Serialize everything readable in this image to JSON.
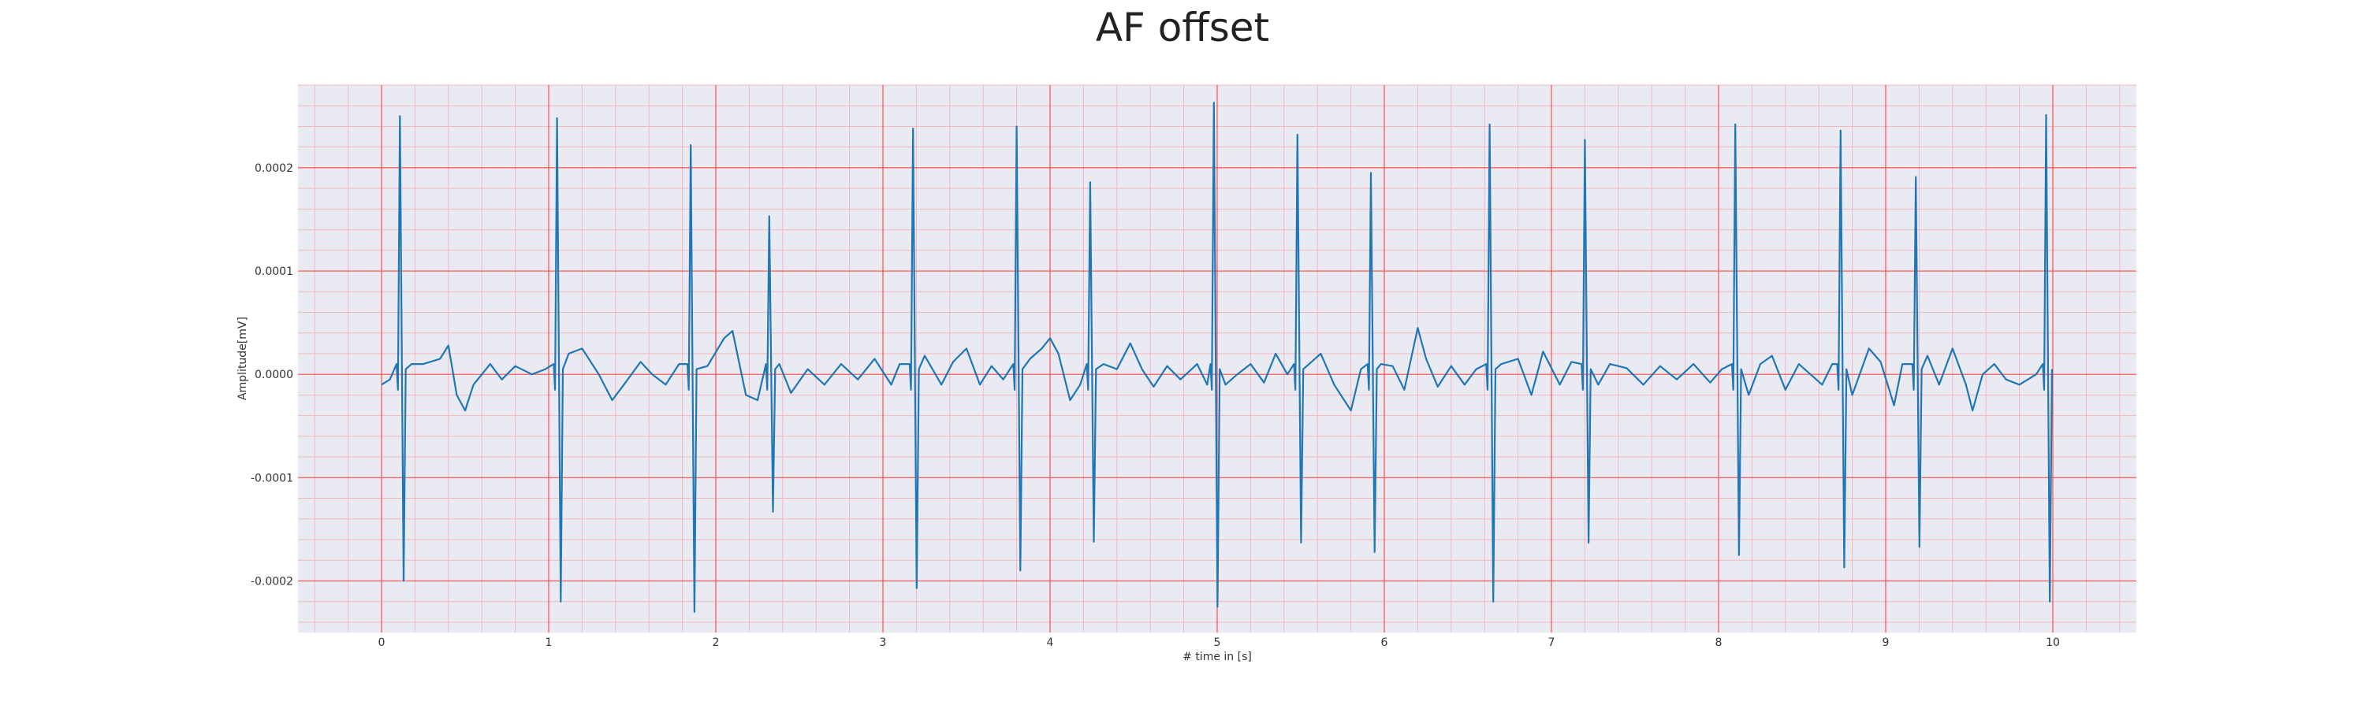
{
  "chart_data": {
    "type": "line",
    "title": "AF offset",
    "xlabel": "# time in [s]",
    "ylabel": "Amplitude[mV]",
    "xlim": [
      -0.5,
      10.5
    ],
    "ylim": [
      -0.00025,
      0.00028
    ],
    "x_ticks": [
      0,
      1,
      2,
      3,
      4,
      5,
      6,
      7,
      8,
      9,
      10
    ],
    "x_tick_labels": [
      "0",
      "1",
      "2",
      "3",
      "4",
      "5",
      "6",
      "7",
      "8",
      "9",
      "10"
    ],
    "y_ticks": [
      -0.0002,
      -0.0001,
      0,
      0.0001,
      0.0002
    ],
    "y_tick_labels": [
      "-0.0002",
      "-0.0001",
      "0.0000",
      "0.0001",
      "0.0002"
    ],
    "grid": true,
    "minor_grid": true,
    "background_color": "#eaeaf2",
    "major_grid_color": "#ff4d4d",
    "minor_grid_color": "#f2b8c0",
    "series": [
      {
        "color": "#1f77b4",
        "beats": [
          {
            "t": 0.11,
            "peak": 0.00025,
            "trough": -0.0002
          },
          {
            "t": 1.05,
            "peak": 0.000248,
            "trough": -0.00022
          },
          {
            "t": 1.85,
            "peak": 0.000222,
            "trough": -0.00023
          },
          {
            "t": 2.32,
            "peak": 0.000153,
            "trough": -0.000133
          },
          {
            "t": 3.18,
            "peak": 0.000238,
            "trough": -0.000207
          },
          {
            "t": 3.8,
            "peak": 0.00024,
            "trough": -0.00019
          },
          {
            "t": 4.24,
            "peak": 0.000186,
            "trough": -0.000162
          },
          {
            "t": 4.98,
            "peak": 0.000263,
            "trough": -0.000225
          },
          {
            "t": 5.48,
            "peak": 0.000232,
            "trough": -0.000163
          },
          {
            "t": 5.92,
            "peak": 0.000195,
            "trough": -0.000172
          },
          {
            "t": 6.63,
            "peak": 0.000242,
            "trough": -0.00022
          },
          {
            "t": 7.2,
            "peak": 0.000227,
            "trough": -0.000163
          },
          {
            "t": 8.1,
            "peak": 0.000242,
            "trough": -0.000175
          },
          {
            "t": 8.73,
            "peak": 0.000236,
            "trough": -0.000187
          },
          {
            "t": 9.18,
            "peak": 0.000191,
            "trough": -0.000167
          },
          {
            "t": 9.96,
            "peak": 0.000251,
            "trough": -0.00022
          }
        ],
        "baseline": [
          [
            0.0,
            -1e-05
          ],
          [
            0.05,
            -5e-06
          ],
          [
            0.18,
            1e-05
          ],
          [
            0.25,
            1e-05
          ],
          [
            0.35,
            1.5e-05
          ],
          [
            0.4,
            2.8e-05
          ],
          [
            0.45,
            -2e-05
          ],
          [
            0.5,
            -3.5e-05
          ],
          [
            0.55,
            -1e-05
          ],
          [
            0.65,
            1e-05
          ],
          [
            0.72,
            -5e-06
          ],
          [
            0.8,
            8e-06
          ],
          [
            0.9,
            0.0
          ],
          [
            0.98,
            5e-06
          ],
          [
            1.12,
            2e-05
          ],
          [
            1.2,
            2.5e-05
          ],
          [
            1.3,
            0.0
          ],
          [
            1.38,
            -2.5e-05
          ],
          [
            1.45,
            -1e-05
          ],
          [
            1.55,
            1.2e-05
          ],
          [
            1.62,
            0.0
          ],
          [
            1.7,
            -1e-05
          ],
          [
            1.78,
            1e-05
          ],
          [
            1.95,
            8e-06
          ],
          [
            2.05,
            3.5e-05
          ],
          [
            2.1,
            4.2e-05
          ],
          [
            2.18,
            -2e-05
          ],
          [
            2.25,
            -2.5e-05
          ],
          [
            2.38,
            1e-05
          ],
          [
            2.45,
            -1.8e-05
          ],
          [
            2.55,
            5e-06
          ],
          [
            2.65,
            -1e-05
          ],
          [
            2.75,
            1e-05
          ],
          [
            2.85,
            -5e-06
          ],
          [
            2.95,
            1.5e-05
          ],
          [
            3.05,
            -1e-05
          ],
          [
            3.1,
            1e-05
          ],
          [
            3.25,
            1.8e-05
          ],
          [
            3.35,
            -1e-05
          ],
          [
            3.42,
            1.2e-05
          ],
          [
            3.5,
            2.5e-05
          ],
          [
            3.58,
            -1e-05
          ],
          [
            3.65,
            8e-06
          ],
          [
            3.72,
            -5e-06
          ],
          [
            3.88,
            1.5e-05
          ],
          [
            3.95,
            2.5e-05
          ],
          [
            4.0,
            3.5e-05
          ],
          [
            4.05,
            2e-05
          ],
          [
            4.12,
            -2.5e-05
          ],
          [
            4.18,
            -1e-05
          ],
          [
            4.32,
            1e-05
          ],
          [
            4.4,
            5e-06
          ],
          [
            4.48,
            3e-05
          ],
          [
            4.55,
            5e-06
          ],
          [
            4.62,
            -1.2e-05
          ],
          [
            4.7,
            8e-06
          ],
          [
            4.78,
            -5e-06
          ],
          [
            4.88,
            1e-05
          ],
          [
            4.94,
            -1e-05
          ],
          [
            5.05,
            -1e-05
          ],
          [
            5.12,
            0.0
          ],
          [
            5.2,
            1e-05
          ],
          [
            5.28,
            -8e-06
          ],
          [
            5.35,
            2e-05
          ],
          [
            5.42,
            0.0
          ],
          [
            5.55,
            1e-05
          ],
          [
            5.62,
            2e-05
          ],
          [
            5.7,
            -1e-05
          ],
          [
            5.8,
            -3.5e-05
          ],
          [
            5.86,
            5e-06
          ],
          [
            5.98,
            1e-05
          ],
          [
            6.05,
            8e-06
          ],
          [
            6.12,
            -1.5e-05
          ],
          [
            6.2,
            4.5e-05
          ],
          [
            6.25,
            1.5e-05
          ],
          [
            6.32,
            -1.2e-05
          ],
          [
            6.4,
            8e-06
          ],
          [
            6.48,
            -1e-05
          ],
          [
            6.55,
            5e-06
          ],
          [
            6.7,
            1e-05
          ],
          [
            6.8,
            1.5e-05
          ],
          [
            6.88,
            -2e-05
          ],
          [
            6.95,
            2.2e-05
          ],
          [
            7.05,
            -1e-05
          ],
          [
            7.12,
            1.2e-05
          ],
          [
            7.28,
            -1e-05
          ],
          [
            7.35,
            1e-05
          ],
          [
            7.45,
            6e-06
          ],
          [
            7.55,
            -1e-05
          ],
          [
            7.65,
            8e-06
          ],
          [
            7.75,
            -5e-06
          ],
          [
            7.85,
            1e-05
          ],
          [
            7.95,
            -8e-06
          ],
          [
            8.02,
            5e-06
          ],
          [
            8.18,
            -2e-05
          ],
          [
            8.25,
            1e-05
          ],
          [
            8.32,
            1.8e-05
          ],
          [
            8.4,
            -1.5e-05
          ],
          [
            8.48,
            1e-05
          ],
          [
            8.55,
            0.0
          ],
          [
            8.62,
            -1e-05
          ],
          [
            8.68,
            1e-05
          ],
          [
            8.8,
            -2e-05
          ],
          [
            8.9,
            2.5e-05
          ],
          [
            8.97,
            1.2e-05
          ],
          [
            9.05,
            -3e-05
          ],
          [
            9.1,
            1e-05
          ],
          [
            9.25,
            1.8e-05
          ],
          [
            9.32,
            -1e-05
          ],
          [
            9.4,
            2.5e-05
          ],
          [
            9.48,
            -1e-05
          ],
          [
            9.52,
            -3.5e-05
          ],
          [
            9.58,
            0.0
          ],
          [
            9.65,
            1e-05
          ],
          [
            9.72,
            -5e-06
          ],
          [
            9.8,
            -1e-05
          ],
          [
            9.9,
            0.0
          ],
          [
            10.0,
            0.0
          ]
        ]
      }
    ]
  }
}
